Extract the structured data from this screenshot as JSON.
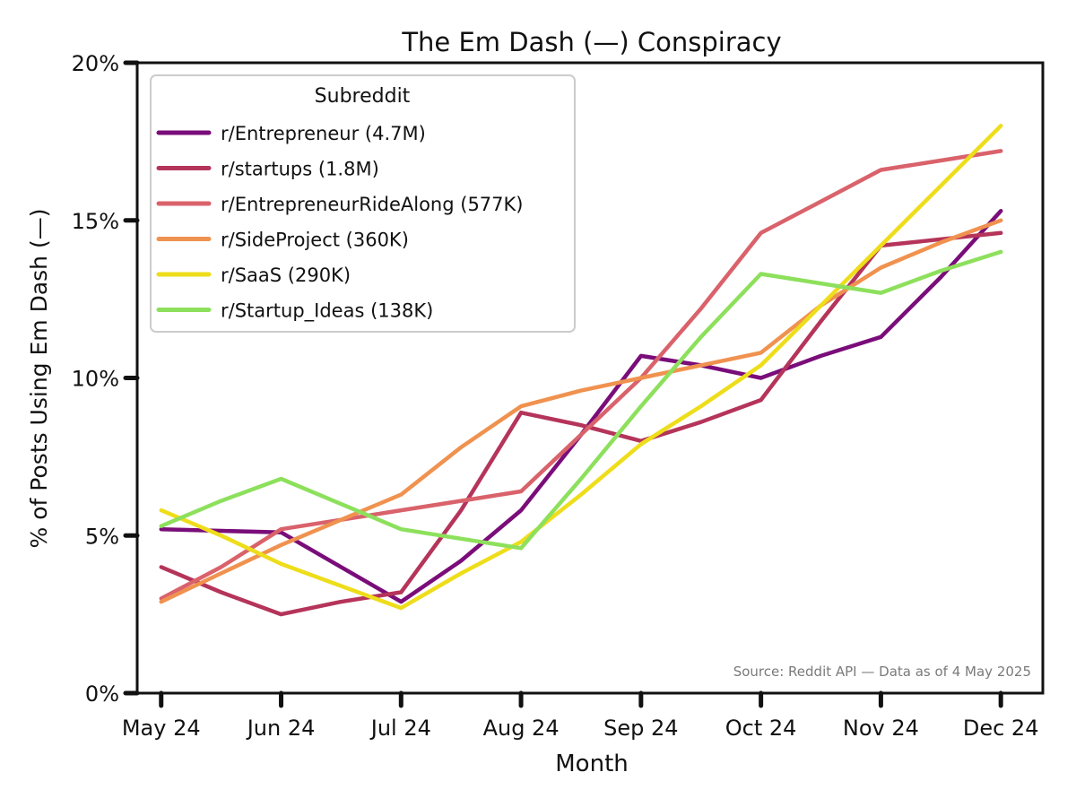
{
  "chart_data": {
    "type": "line",
    "title": "The Em Dash (—) Conspiracy",
    "xlabel": "Month",
    "ylabel": "% of Posts Using Em Dash (—)",
    "ylim": [
      0,
      20
    ],
    "yticks": [
      "0%",
      "5%",
      "10%",
      "15%",
      "20%"
    ],
    "x_range": [
      -0.2,
      7.35
    ],
    "categories": [
      "May 24",
      "Jun 24",
      "Jul 24",
      "Aug 24",
      "Sep 24",
      "Oct 24",
      "Nov 24",
      "Dec 24"
    ],
    "grid": false,
    "legend": {
      "title": "Subreddit",
      "placement": "top-left"
    },
    "annotation": "Source: Reddit API — Data as of 4 May 2025",
    "series": [
      {
        "name": "r/Entrepreneur (4.7M)",
        "color": "#7a0d79",
        "points": [
          [
            0,
            5.2
          ],
          [
            0.5,
            5.15
          ],
          [
            1,
            5.1
          ],
          [
            1.5,
            4.0
          ],
          [
            2,
            2.9
          ],
          [
            2.5,
            4.2
          ],
          [
            3,
            5.8
          ],
          [
            3.5,
            8.2
          ],
          [
            4,
            10.7
          ],
          [
            4.5,
            10.4
          ],
          [
            5,
            10.0
          ],
          [
            5.5,
            10.7
          ],
          [
            6,
            11.3
          ],
          [
            6.5,
            13.2
          ],
          [
            7,
            15.3
          ]
        ]
      },
      {
        "name": "r/startups (1.8M)",
        "color": "#b5345a",
        "points": [
          [
            0,
            4.0
          ],
          [
            0.5,
            3.2
          ],
          [
            1,
            2.5
          ],
          [
            1.5,
            2.9
          ],
          [
            2,
            3.2
          ],
          [
            2.5,
            5.8
          ],
          [
            3,
            8.9
          ],
          [
            3.5,
            8.5
          ],
          [
            4,
            8.0
          ],
          [
            4.5,
            8.6
          ],
          [
            5,
            9.3
          ],
          [
            5.5,
            11.8
          ],
          [
            6,
            14.2
          ],
          [
            6.5,
            14.4
          ],
          [
            7,
            14.6
          ]
        ]
      },
      {
        "name": "r/EntrepreneurRideAlong (577K)",
        "color": "#d9626b",
        "points": [
          [
            0,
            3.0
          ],
          [
            0.5,
            4.0
          ],
          [
            1,
            5.2
          ],
          [
            1.5,
            5.5
          ],
          [
            2,
            5.8
          ],
          [
            2.5,
            6.1
          ],
          [
            3,
            6.4
          ],
          [
            3.5,
            8.2
          ],
          [
            4,
            10.0
          ],
          [
            4.5,
            12.2
          ],
          [
            5,
            14.6
          ],
          [
            5.5,
            15.6
          ],
          [
            6,
            16.6
          ],
          [
            6.5,
            16.9
          ],
          [
            7,
            17.2
          ]
        ]
      },
      {
        "name": "r/SideProject (360K)",
        "color": "#f0924f",
        "points": [
          [
            0,
            2.9
          ],
          [
            0.5,
            3.8
          ],
          [
            1,
            4.7
          ],
          [
            1.5,
            5.5
          ],
          [
            2,
            6.3
          ],
          [
            2.5,
            7.8
          ],
          [
            3,
            9.1
          ],
          [
            3.5,
            9.6
          ],
          [
            4,
            10.0
          ],
          [
            4.5,
            10.4
          ],
          [
            5,
            10.8
          ],
          [
            5.5,
            12.3
          ],
          [
            6,
            13.5
          ],
          [
            6.5,
            14.3
          ],
          [
            7,
            15.0
          ]
        ]
      },
      {
        "name": "r/SaaS (290K)",
        "color": "#eedd1a",
        "points": [
          [
            0,
            5.8
          ],
          [
            0.5,
            5.0
          ],
          [
            1,
            4.1
          ],
          [
            1.5,
            3.4
          ],
          [
            2,
            2.7
          ],
          [
            2.5,
            3.8
          ],
          [
            3,
            4.8
          ],
          [
            3.5,
            6.3
          ],
          [
            4,
            7.9
          ],
          [
            4.5,
            9.1
          ],
          [
            5,
            10.4
          ],
          [
            5.5,
            12.3
          ],
          [
            6,
            14.2
          ],
          [
            6.5,
            16.1
          ],
          [
            7,
            18.0
          ]
        ]
      },
      {
        "name": "r/Startup_Ideas (138K)",
        "color": "#8de05c",
        "points": [
          [
            0,
            5.3
          ],
          [
            0.5,
            6.1
          ],
          [
            1,
            6.8
          ],
          [
            1.5,
            6.0
          ],
          [
            2,
            5.2
          ],
          [
            2.5,
            4.9
          ],
          [
            3,
            4.6
          ],
          [
            3.5,
            6.8
          ],
          [
            4,
            9.1
          ],
          [
            4.5,
            11.3
          ],
          [
            5,
            13.3
          ],
          [
            5.5,
            13.0
          ],
          [
            6,
            12.7
          ],
          [
            6.5,
            13.4
          ],
          [
            7,
            14.0
          ]
        ]
      }
    ]
  }
}
